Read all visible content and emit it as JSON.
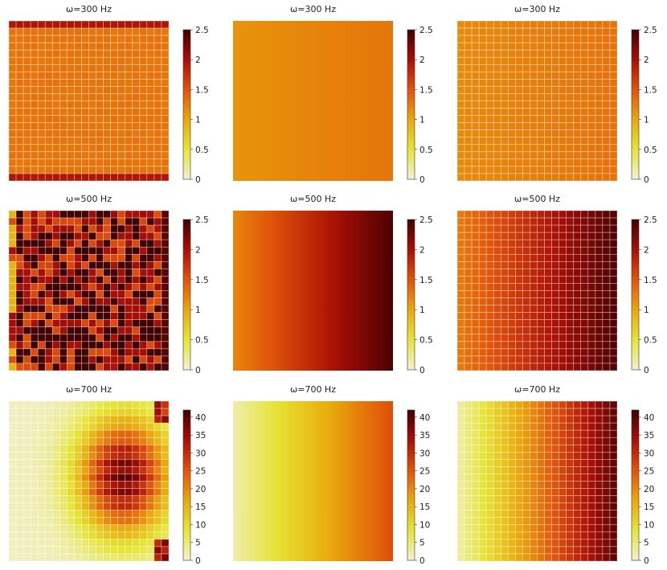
{
  "colors": {
    "colormap": [
      "#f2f0d0",
      "#e6e535",
      "#e9a80c",
      "#e2530a",
      "#a90f06",
      "#420000"
    ]
  },
  "chart_data": [
    {
      "type": "heatmap",
      "title": "ω=300 Hz",
      "pattern": "uniform_edges",
      "grid": 22,
      "cells": true,
      "value_mid": 1.3,
      "value_edge": 1.95,
      "colorbar": {
        "min": 0,
        "max": 2.5,
        "ticks": [
          "0",
          "0.5",
          "1",
          "1.5",
          "2",
          "2.5"
        ]
      }
    },
    {
      "type": "heatmap",
      "title": "ω=300 Hz",
      "pattern": "gradient",
      "grid": 1,
      "cells": false,
      "value_left": 1.12,
      "value_right": 1.3,
      "colorbar": {
        "min": 0,
        "max": 2.5,
        "ticks": [
          "0",
          "0.5",
          "1",
          "1.5",
          "2",
          "2.5"
        ]
      }
    },
    {
      "type": "heatmap",
      "title": "ω=300 Hz",
      "pattern": "gradient",
      "grid": 22,
      "cells": true,
      "value_left": 1.17,
      "value_right": 1.32,
      "colorbar": {
        "min": 0,
        "max": 2.5,
        "ticks": [
          "0",
          "0.5",
          "1",
          "1.5",
          "2",
          "2.5"
        ]
      }
    },
    {
      "type": "heatmap",
      "title": "ω=500 Hz",
      "pattern": "resonant",
      "grid": 22,
      "cells": true,
      "value_low": 1.3,
      "value_high": 2.5,
      "colorbar": {
        "min": 0,
        "max": 2.5,
        "ticks": [
          "0",
          "0.5",
          "1",
          "1.5",
          "2",
          "2.5"
        ]
      }
    },
    {
      "type": "heatmap",
      "title": "ω=500 Hz",
      "pattern": "gradient",
      "grid": 1,
      "cells": false,
      "value_left": 1.2,
      "value_right": 2.45,
      "colorbar": {
        "min": 0,
        "max": 2.5,
        "ticks": [
          "0",
          "0.5",
          "1",
          "1.5",
          "2",
          "2.5"
        ]
      }
    },
    {
      "type": "heatmap",
      "title": "ω=500 Hz",
      "pattern": "gradient",
      "grid": 22,
      "cells": true,
      "value_left": 1.25,
      "value_right": 2.45,
      "colorbar": {
        "min": 0,
        "max": 2.5,
        "ticks": [
          "0",
          "0.5",
          "1",
          "1.5",
          "2",
          "2.5"
        ]
      }
    },
    {
      "type": "heatmap",
      "title": "ω=700 Hz",
      "pattern": "focus",
      "grid": 22,
      "cells": true,
      "value_low": 1,
      "value_high": 40,
      "colorbar": {
        "min": 0,
        "max": 42,
        "ticks": [
          "0",
          "5",
          "10",
          "15",
          "20",
          "25",
          "30",
          "35",
          "40"
        ]
      }
    },
    {
      "type": "heatmap",
      "title": "ω=700 Hz",
      "pattern": "gradient",
      "grid": 1,
      "cells": false,
      "value_left": 2,
      "value_right": 26,
      "colorbar": {
        "min": 0,
        "max": 42,
        "ticks": [
          "0",
          "5",
          "10",
          "15",
          "20",
          "25",
          "30",
          "35",
          "40"
        ]
      }
    },
    {
      "type": "heatmap",
      "title": "ω=700 Hz",
      "pattern": "gradient",
      "grid": 22,
      "cells": true,
      "value_left": 2,
      "value_right": 40,
      "colorbar": {
        "min": 0,
        "max": 42,
        "ticks": [
          "0",
          "5",
          "10",
          "15",
          "20",
          "25",
          "30",
          "35",
          "40"
        ]
      }
    }
  ]
}
